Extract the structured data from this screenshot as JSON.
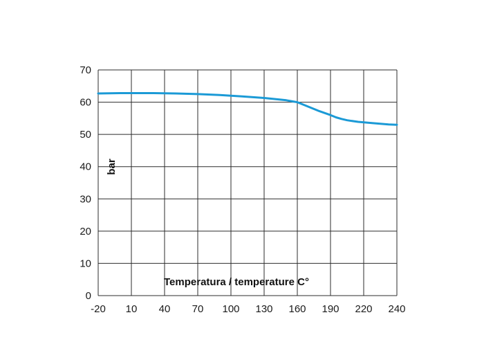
{
  "chart_data": {
    "type": "line",
    "title": "",
    "xlabel": "Temperatura / temperature C°",
    "ylabel": "bar",
    "x_ticks": [
      "-20",
      "10",
      "40",
      "70",
      "100",
      "130",
      "160",
      "190",
      "220",
      "240"
    ],
    "y_ticks": [
      "0",
      "10",
      "20",
      "30",
      "40",
      "50",
      "60",
      "70"
    ],
    "ylim": [
      0,
      70
    ],
    "grid": true,
    "series": [
      {
        "color": "#1b9ad6",
        "x": [
          -20,
          0,
          10,
          30,
          50,
          70,
          90,
          110,
          130,
          150,
          160,
          170,
          180,
          190,
          195,
          200,
          205,
          215,
          225,
          235,
          240
        ],
        "y": [
          62.7,
          62.8,
          62.8,
          62.8,
          62.7,
          62.5,
          62.2,
          61.8,
          61.3,
          60.6,
          60.0,
          58.6,
          57.2,
          56.0,
          55.3,
          54.8,
          54.4,
          53.9,
          53.5,
          53.1,
          53.0
        ]
      }
    ]
  }
}
